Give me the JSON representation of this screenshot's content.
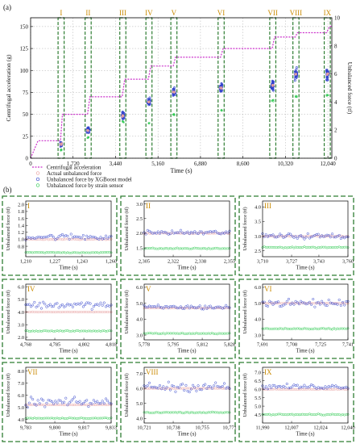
{
  "colors": {
    "centrifugal": "#cc33cc",
    "actual": "#e8a0a0",
    "xgboost": "#3344cc",
    "strain": "#33cc55",
    "dashed_box": "#2e7d32",
    "panel_border": "#2e7d32",
    "grid": "#999999"
  },
  "chart_data": [
    {
      "type": "line",
      "panel_label": "(a)",
      "xlabel": "Time (s)",
      "ylabel": "Centrifugal acceleration (g)",
      "y2label": "Unbalanced force (tf)",
      "xlim": [
        0,
        12200
      ],
      "ylim": [
        0,
        160
      ],
      "y2lim": [
        0,
        10
      ],
      "xticks": [
        0,
        1720,
        3440,
        5160,
        6880,
        8600,
        10320,
        12040
      ],
      "xtick_labels": [
        "0",
        "1,720",
        "3,440",
        "5,160",
        "6,880",
        "8,600",
        "10,320",
        "12,040"
      ],
      "yticks": [
        0,
        25,
        50,
        75,
        100,
        125,
        150
      ],
      "y2ticks": [
        0,
        2,
        4,
        6,
        8,
        10
      ],
      "grid": true,
      "legend": {
        "placement": "below",
        "entries": [
          "Centrifugal acceleration",
          "Actual unbalanced force",
          "Unbalanced force by XGBoost model",
          "Unbalanced force by strain sensor"
        ]
      },
      "centrifugal_steps": {
        "x": [
          0,
          300,
          1210,
          1290,
          2305,
          2400,
          3710,
          3810,
          4768,
          4870,
          5778,
          5870,
          7691,
          7800,
          9783,
          9880,
          10721,
          10800,
          11990,
          12100,
          12200
        ],
        "y": [
          0,
          20,
          20,
          50,
          50,
          70,
          70,
          90,
          90,
          105,
          105,
          115,
          115,
          125,
          125,
          138,
          138,
          143,
          143,
          150,
          150
        ]
      },
      "stages": [
        {
          "label": "I",
          "x_start": 1210,
          "x_end": 1260,
          "force_mean": 1.0,
          "strain_mean": 0.6
        },
        {
          "label": "II",
          "x_start": 2305,
          "x_end": 2355,
          "force_mean": 2.0,
          "strain_mean": 1.5
        },
        {
          "label": "III",
          "x_start": 3710,
          "x_end": 3760,
          "force_mean": 3.0,
          "strain_mean": 2.6
        },
        {
          "label": "IV",
          "x_start": 4768,
          "x_end": 4818,
          "force_mean": 4.0,
          "strain_mean": 2.5
        },
        {
          "label": "V",
          "x_start": 5778,
          "x_end": 5828,
          "force_mean": 4.7,
          "strain_mean": 3.1
        },
        {
          "label": "VI",
          "x_start": 7691,
          "x_end": 7741,
          "force_mean": 5.0,
          "strain_mean": 3.4
        },
        {
          "label": "VII",
          "x_start": 9783,
          "x_end": 9833,
          "force_mean": 5.2,
          "strain_mean": 4.1
        },
        {
          "label": "VIII",
          "x_start": 10721,
          "x_end": 10771,
          "force_mean": 6.0,
          "strain_mean": 4.4
        },
        {
          "label": "IX",
          "x_start": 11990,
          "x_end": 12040,
          "force_mean": 6.0,
          "strain_mean": 4.5
        }
      ]
    },
    {
      "type": "scatter",
      "panel_label": "(b)",
      "xlabel": "Time (s)",
      "ylabel": "Unbalanced force (tf)",
      "panels": [
        {
          "label": "I",
          "xlim": [
            1210,
            1260
          ],
          "xticks": [
            1210,
            1227,
            1243,
            1260
          ],
          "xtick_labels": [
            "1,210",
            "1,227",
            "1,243",
            "1,260"
          ],
          "ylim": [
            0.5,
            2.1
          ],
          "yticks": [
            0.8,
            1.0,
            1.2,
            1.4,
            1.6,
            1.8,
            2.0
          ],
          "ytick_labels": [
            "0.8",
            "1.0",
            "1.2",
            "1.4",
            "1.6",
            "1.8",
            "2.0"
          ],
          "actual": 1.0,
          "xgb_mean": 1.07,
          "xgb_spread": 0.13,
          "strain": 0.62,
          "strain_spread": 0.02
        },
        {
          "label": "II",
          "xlim": [
            2305,
            2355
          ],
          "xticks": [
            2305,
            2322,
            2338,
            2355
          ],
          "xtick_labels": [
            "2,305",
            "2,322",
            "2,338",
            "2,355"
          ],
          "ylim": [
            1.2,
            3.1
          ],
          "yticks": [
            1.5,
            2.0,
            2.5,
            3.0
          ],
          "ytick_labels": [
            "1.5",
            "2.0",
            "2.5",
            "3.0"
          ],
          "actual": 2.0,
          "xgb_mean": 2.02,
          "xgb_spread": 0.12,
          "strain": 1.48,
          "strain_spread": 0.03
        },
        {
          "label": "III",
          "xlim": [
            3710,
            3760
          ],
          "xticks": [
            3710,
            3727,
            3743,
            3760
          ],
          "xtick_labels": [
            "3,710",
            "3,727",
            "3,743",
            "3,760"
          ],
          "ylim": [
            2.3,
            4.2
          ],
          "yticks": [
            2.5,
            3.0,
            3.5,
            4.0
          ],
          "ytick_labels": [
            "2.5",
            "3.0",
            "3.5",
            "4.0"
          ],
          "actual": 3.0,
          "xgb_mean": 3.0,
          "xgb_spread": 0.13,
          "strain": 2.62,
          "strain_spread": 0.03
        },
        {
          "label": "IV",
          "xlim": [
            4768,
            4818
          ],
          "xticks": [
            4768,
            4785,
            4802,
            4818
          ],
          "xtick_labels": [
            "4,768",
            "4,785",
            "4,802",
            "4,818"
          ],
          "ylim": [
            1.8,
            6.2
          ],
          "yticks": [
            2.0,
            3.0,
            4.0,
            5.0,
            6.0
          ],
          "ytick_labels": [
            "2.0",
            "3.0",
            "4.0",
            "5.0",
            "6.0"
          ],
          "actual": 4.0,
          "xgb_mean": 4.55,
          "xgb_spread": 0.4,
          "strain": 2.5,
          "strain_spread": 0.05
        },
        {
          "label": "V",
          "xlim": [
            5778,
            5828
          ],
          "xticks": [
            5778,
            5795,
            5812,
            5828
          ],
          "xtick_labels": [
            "5,778",
            "5,795",
            "5,812",
            "5,828"
          ],
          "ylim": [
            2.7,
            6.2
          ],
          "yticks": [
            3.0,
            4.0,
            5.0,
            6.0
          ],
          "ytick_labels": [
            "3.0",
            "4.0",
            "5.0",
            "6.0"
          ],
          "actual": 4.7,
          "xgb_mean": 4.75,
          "xgb_spread": 0.2,
          "strain": 3.1,
          "strain_spread": 0.05
        },
        {
          "label": "VI",
          "xlim": [
            7691,
            7741
          ],
          "xticks": [
            7691,
            7708,
            7725,
            7741
          ],
          "xtick_labels": [
            "7,691",
            "7,708",
            "7,725",
            "7,741"
          ],
          "ylim": [
            2.7,
            6.2
          ],
          "yticks": [
            3.0,
            4.0,
            5.0,
            6.0
          ],
          "ytick_labels": [
            "3.0",
            "4.0",
            "5.0",
            "6.0"
          ],
          "actual": 5.0,
          "xgb_mean": 5.0,
          "xgb_spread": 0.35,
          "strain": 3.4,
          "strain_spread": 0.05
        },
        {
          "label": "VII",
          "xlim": [
            9783,
            9833
          ],
          "xticks": [
            9783,
            9800,
            9817,
            9833
          ],
          "xtick_labels": [
            "9,783",
            "9,800",
            "9,817",
            "9,833"
          ],
          "ylim": [
            3.7,
            8.3
          ],
          "yticks": [
            4.0,
            5.0,
            6.0,
            7.0,
            8.0
          ],
          "ytick_labels": [
            "4.0",
            "5.0",
            "6.0",
            "7.0",
            "8.0"
          ],
          "actual": 5.2,
          "xgb_mean": 5.4,
          "xgb_spread": 0.55,
          "strain": 4.1,
          "strain_spread": 0.05
        },
        {
          "label": "VIII",
          "xlim": [
            10721,
            10771
          ],
          "xticks": [
            10721,
            10738,
            10755,
            10771
          ],
          "xtick_labels": [
            "10,721",
            "10,738",
            "10,755",
            "10,771"
          ],
          "ylim": [
            3.7,
            7.4
          ],
          "yticks": [
            4.0,
            5.0,
            6.0,
            7.0
          ],
          "ytick_labels": [
            "4.0",
            "5.0",
            "6.0",
            "7.0"
          ],
          "actual": 6.0,
          "xgb_mean": 6.1,
          "xgb_spread": 0.45,
          "strain": 4.4,
          "strain_spread": 0.05
        },
        {
          "label": "IX",
          "xlim": [
            11990,
            12040
          ],
          "xticks": [
            11990,
            12007,
            12024,
            12040
          ],
          "xtick_labels": [
            "11,990",
            "12,007",
            "12,024",
            "12,040"
          ],
          "ylim": [
            4.0,
            7.3
          ],
          "yticks": [
            4.5,
            5.0,
            5.5,
            6.0,
            6.5,
            7.0
          ],
          "ytick_labels": [
            "4.5",
            "5.0",
            "5.5",
            "6.0",
            "6.5",
            "7.0"
          ],
          "actual": 6.0,
          "xgb_mean": 6.15,
          "xgb_spread": 0.2,
          "strain": 4.5,
          "strain_spread": 0.05
        }
      ]
    }
  ]
}
